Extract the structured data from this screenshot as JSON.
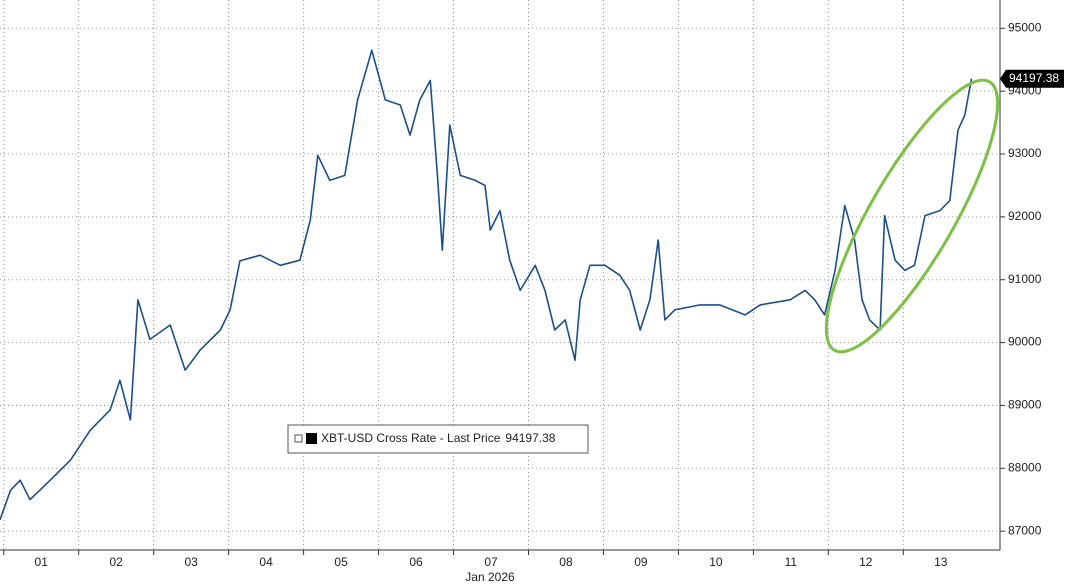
{
  "chart_data": {
    "type": "line",
    "xlabel": "Jan 2026",
    "x": [
      0.95,
      1.09,
      1.22,
      1.35,
      1.62,
      1.89,
      2.15,
      2.42,
      2.55,
      2.69,
      2.79,
      2.95,
      3.22,
      3.42,
      3.62,
      3.89,
      4.02,
      4.15,
      4.42,
      4.69,
      4.95,
      5.09,
      5.19,
      5.35,
      5.55,
      5.72,
      5.91,
      6.09,
      6.29,
      6.42,
      6.55,
      6.69,
      6.79,
      6.85,
      6.95,
      7.09,
      7.29,
      7.42,
      7.49,
      7.62,
      7.75,
      7.89,
      8.09,
      8.22,
      8.35,
      8.49,
      8.62,
      8.69,
      8.82,
      9.02,
      9.22,
      9.35,
      9.49,
      9.62,
      9.73,
      9.82,
      9.95,
      10.29,
      10.55,
      10.89,
      11.09,
      11.49,
      11.69,
      11.82,
      11.95,
      12.09,
      12.22,
      12.35,
      12.45,
      12.55,
      12.69,
      12.75,
      12.89,
      13.02,
      13.15,
      13.29,
      13.49,
      13.62,
      13.73,
      13.82,
      13.91
    ],
    "series": [
      {
        "name": "XBT-USD Cross Rate - Last Price",
        "color": "#1c4f8a",
        "values": [
          87180,
          87650,
          87810,
          87500,
          87810,
          88130,
          88600,
          88930,
          89400,
          88770,
          90680,
          90050,
          90280,
          89560,
          89880,
          90200,
          90520,
          91300,
          91390,
          91230,
          91310,
          91950,
          92980,
          92580,
          92660,
          93860,
          94650,
          93860,
          93780,
          93300,
          93860,
          94170,
          92580,
          91470,
          93460,
          92660,
          92580,
          92500,
          91790,
          92100,
          91310,
          90830,
          91230,
          90830,
          90200,
          90360,
          89720,
          90680,
          91230,
          91230,
          91070,
          90830,
          90200,
          90680,
          91630,
          90360,
          90520,
          90600,
          90600,
          90440,
          90600,
          90680,
          90830,
          90680,
          90440,
          91150,
          92180,
          91630,
          90680,
          90360,
          90200,
          92020,
          91310,
          91150,
          91230,
          92020,
          92100,
          92260,
          93380,
          93620,
          94197.38
        ]
      }
    ],
    "xlim": [
      0.95,
      14.29
    ],
    "xticks": [
      {
        "value": 1,
        "label": "01"
      },
      {
        "value": 2,
        "label": "02"
      },
      {
        "value": 3,
        "label": "03"
      },
      {
        "value": 4,
        "label": "04"
      },
      {
        "value": 5,
        "label": "05"
      },
      {
        "value": 6,
        "label": "06"
      },
      {
        "value": 7,
        "label": "07"
      },
      {
        "value": 8,
        "label": "08"
      },
      {
        "value": 9,
        "label": "09"
      },
      {
        "value": 10,
        "label": "10"
      },
      {
        "value": 11,
        "label": "11"
      },
      {
        "value": 12,
        "label": "12"
      },
      {
        "value": 13,
        "label": "13"
      }
    ],
    "ylim": [
      86700,
      95450
    ],
    "yticks": [
      87000,
      88000,
      89000,
      90000,
      91000,
      92000,
      93000,
      94000,
      95000
    ],
    "grid": true
  }
}
